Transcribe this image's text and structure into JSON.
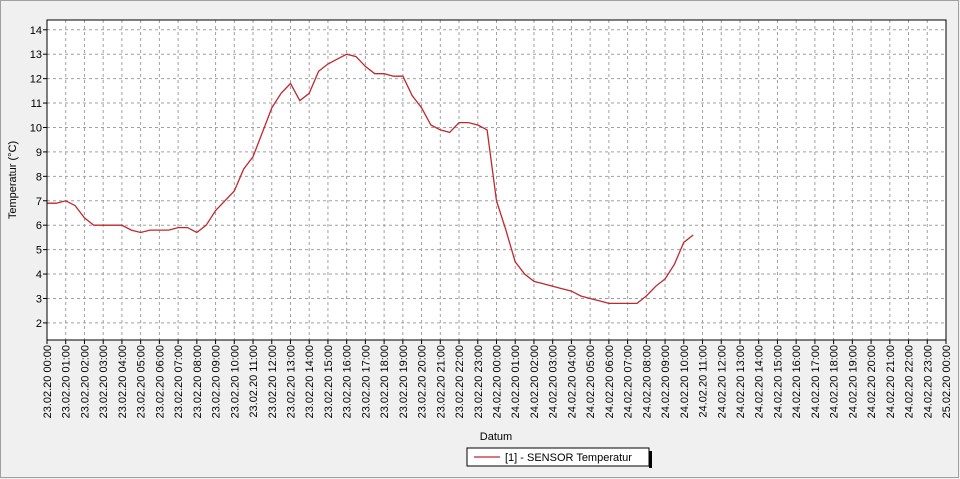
{
  "chart_data": {
    "type": "line",
    "x_label": "Datum",
    "y_label": "Temperatur (°C)",
    "x": [
      "23.02.20 00:00",
      "23.02.20 00:30",
      "23.02.20 01:00",
      "23.02.20 01:30",
      "23.02.20 02:00",
      "23.02.20 02:30",
      "23.02.20 03:00",
      "23.02.20 03:30",
      "23.02.20 04:00",
      "23.02.20 04:30",
      "23.02.20 05:00",
      "23.02.20 05:30",
      "23.02.20 06:00",
      "23.02.20 06:30",
      "23.02.20 07:00",
      "23.02.20 07:30",
      "23.02.20 08:00",
      "23.02.20 08:30",
      "23.02.20 09:00",
      "23.02.20 09:30",
      "23.02.20 10:00",
      "23.02.20 10:30",
      "23.02.20 11:00",
      "23.02.20 11:30",
      "23.02.20 12:00",
      "23.02.20 12:30",
      "23.02.20 13:00",
      "23.02.20 13:30",
      "23.02.20 14:00",
      "23.02.20 14:30",
      "23.02.20 15:00",
      "23.02.20 15:30",
      "23.02.20 16:00",
      "23.02.20 16:30",
      "23.02.20 17:00",
      "23.02.20 17:30",
      "23.02.20 18:00",
      "23.02.20 18:30",
      "23.02.20 19:00",
      "23.02.20 19:30",
      "23.02.20 20:00",
      "23.02.20 20:30",
      "23.02.20 21:00",
      "23.02.20 21:30",
      "23.02.20 22:00",
      "23.02.20 22:30",
      "23.02.20 23:00",
      "23.02.20 23:30",
      "24.02.20 00:00",
      "24.02.20 00:30",
      "24.02.20 01:00",
      "24.02.20 01:30",
      "24.02.20 02:00",
      "24.02.20 02:30",
      "24.02.20 03:00",
      "24.02.20 03:30",
      "24.02.20 04:00",
      "24.02.20 04:30",
      "24.02.20 05:00",
      "24.02.20 05:30",
      "24.02.20 06:00",
      "24.02.20 06:30",
      "24.02.20 07:00",
      "24.02.20 07:30",
      "24.02.20 08:00",
      "24.02.20 08:30",
      "24.02.20 09:00",
      "24.02.20 09:30",
      "24.02.20 10:00",
      "24.02.20 10:30"
    ],
    "series": [
      {
        "name": "[1] - SENSOR Temperatur",
        "color": "#c0282d",
        "values": [
          6.9,
          6.9,
          7.0,
          6.8,
          6.3,
          6.0,
          6.0,
          6.0,
          6.0,
          5.8,
          5.7,
          5.8,
          5.8,
          5.8,
          5.9,
          5.9,
          5.7,
          6.0,
          6.6,
          7.0,
          7.4,
          8.3,
          8.8,
          9.8,
          10.8,
          11.4,
          11.8,
          11.1,
          11.4,
          12.3,
          12.6,
          12.8,
          13.0,
          12.9,
          12.5,
          12.2,
          12.2,
          12.1,
          12.1,
          11.3,
          10.8,
          10.1,
          9.9,
          9.8,
          10.2,
          10.2,
          10.1,
          9.9,
          7.0,
          5.8,
          4.5,
          4.0,
          3.7,
          3.6,
          3.5,
          3.4,
          3.3,
          3.1,
          3.0,
          2.9,
          2.8,
          2.8,
          2.8,
          2.8,
          3.1,
          3.5,
          3.8,
          4.4,
          5.3,
          5.6
        ]
      }
    ],
    "xlim": [
      "23.02.20 00:00",
      "25.02.20 00:00"
    ],
    "xticks": [
      "23.02.20 00:00",
      "23.02.20 01:00",
      "23.02.20 02:00",
      "23.02.20 03:00",
      "23.02.20 04:00",
      "23.02.20 05:00",
      "23.02.20 06:00",
      "23.02.20 07:00",
      "23.02.20 08:00",
      "23.02.20 09:00",
      "23.02.20 10:00",
      "23.02.20 11:00",
      "23.02.20 12:00",
      "23.02.20 13:00",
      "23.02.20 14:00",
      "23.02.20 15:00",
      "23.02.20 16:00",
      "23.02.20 17:00",
      "23.02.20 18:00",
      "23.02.20 19:00",
      "23.02.20 20:00",
      "23.02.20 21:00",
      "23.02.20 22:00",
      "23.02.20 23:00",
      "24.02.20 00:00",
      "24.02.20 01:00",
      "24.02.20 02:00",
      "24.02.20 03:00",
      "24.02.20 04:00",
      "24.02.20 05:00",
      "24.02.20 06:00",
      "24.02.20 07:00",
      "24.02.20 08:00",
      "24.02.20 09:00",
      "24.02.20 10:00",
      "24.02.20 11:00",
      "24.02.20 12:00",
      "24.02.20 13:00",
      "24.02.20 14:00",
      "24.02.20 15:00",
      "24.02.20 16:00",
      "24.02.20 17:00",
      "24.02.20 18:00",
      "24.02.20 19:00",
      "24.02.20 20:00",
      "24.02.20 21:00",
      "24.02.20 22:00",
      "24.02.20 23:00",
      "25.02.20 00:00"
    ],
    "ylim": [
      1.3,
      14.4
    ],
    "yticks": [
      2,
      3,
      4,
      5,
      6,
      7,
      8,
      9,
      10,
      11,
      12,
      13,
      14
    ],
    "grid": true
  }
}
